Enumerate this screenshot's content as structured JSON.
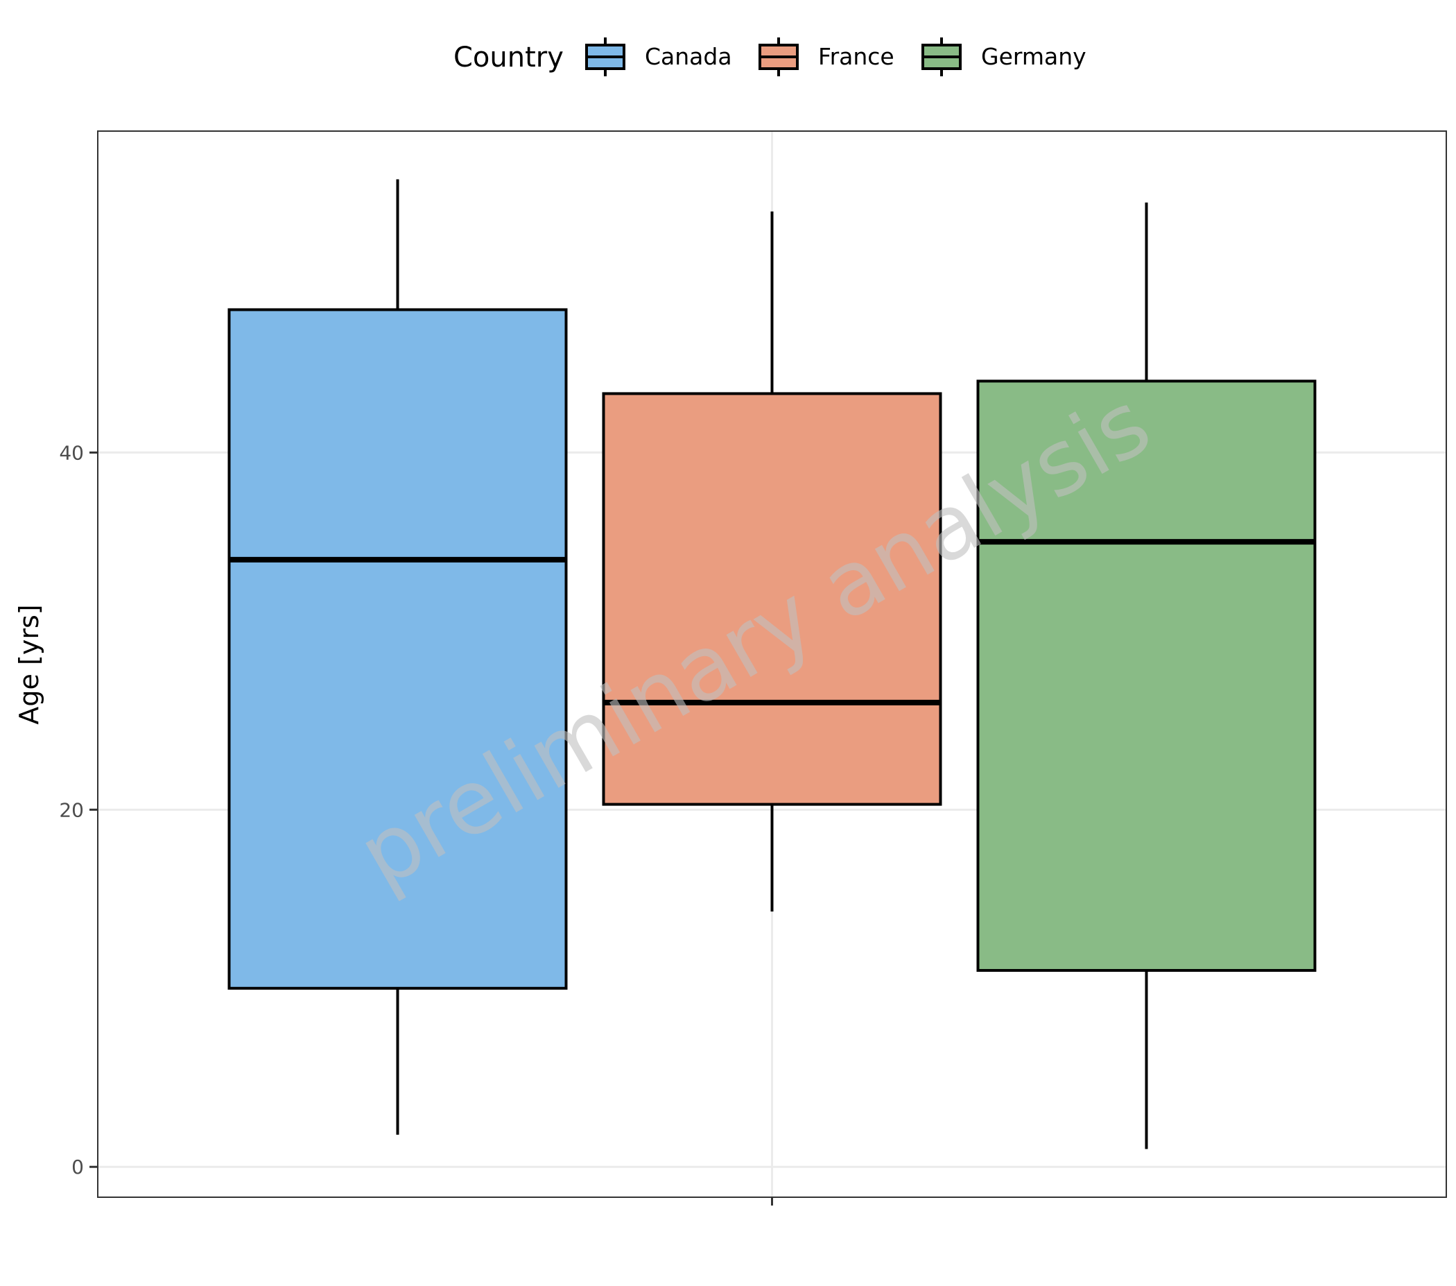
{
  "chart_data": {
    "type": "boxplot",
    "ylabel": "Age [yrs]",
    "xlabel": "",
    "ylim": [
      -1.7,
      58
    ],
    "yticks": [
      0,
      20,
      40
    ],
    "grid": true,
    "legend": {
      "title": "Country",
      "position": "top",
      "entries": [
        "Canada",
        "France",
        "Germany"
      ]
    },
    "series": [
      {
        "name": "Canada",
        "color": "#7fb9e8",
        "whisker_low": 1.8,
        "q1": 10.0,
        "median": 34.0,
        "q3": 48.0,
        "whisker_high": 55.3
      },
      {
        "name": "France",
        "color": "#ea9d80",
        "whisker_low": 14.3,
        "q1": 20.3,
        "median": 26.0,
        "q3": 43.3,
        "whisker_high": 53.5
      },
      {
        "name": "Germany",
        "color": "#89bb86",
        "whisker_low": 1.0,
        "q1": 11.0,
        "median": 35.0,
        "q3": 44.0,
        "whisker_high": 54.0
      }
    ],
    "watermark": "preliminary analysis"
  }
}
